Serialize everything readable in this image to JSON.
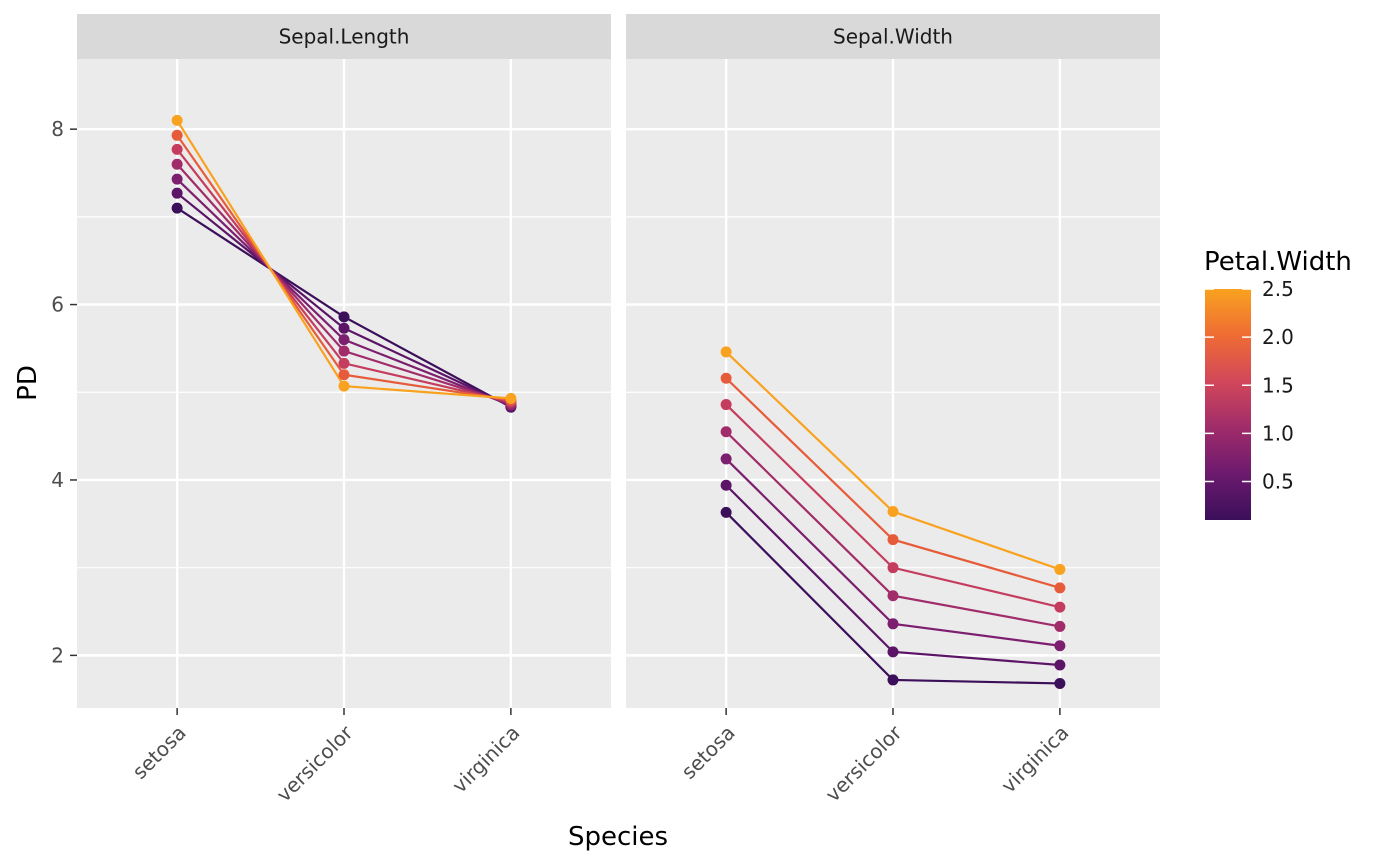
{
  "chart_data": {
    "type": "line",
    "xlabel": "Species",
    "ylabel": "PD",
    "categories": [
      "setosa",
      "versicolor",
      "virginica"
    ],
    "ylim": [
      1.4,
      8.8
    ],
    "yticks": [
      2,
      4,
      6,
      8
    ],
    "grid": true,
    "legend": {
      "title": "Petal.Width",
      "placement": "right",
      "type": "colorbar",
      "range": [
        0.1,
        2.5
      ],
      "ticks": [
        "0.5",
        "1.0",
        "1.5",
        "2.0",
        "2.5"
      ],
      "tick_values": [
        0.5,
        1.0,
        1.5,
        2.0,
        2.5
      ],
      "palette": [
        "#3b0f5a",
        "#6c1a6e",
        "#a02c6a",
        "#d2475a",
        "#ef6c34",
        "#f9a21f"
      ]
    },
    "panels": [
      {
        "title": "Sepal.Length",
        "series": [
          {
            "petal_width": 0.1,
            "color": "#3b0f5a",
            "values": [
              7.1,
              5.86,
              4.83
            ]
          },
          {
            "petal_width": 0.5,
            "color": "#5c1467",
            "values": [
              7.27,
              5.73,
              4.84
            ]
          },
          {
            "petal_width": 0.9,
            "color": "#7d1f6f",
            "values": [
              7.43,
              5.6,
              4.85
            ]
          },
          {
            "petal_width": 1.3,
            "color": "#a02c6a",
            "values": [
              7.6,
              5.47,
              4.87
            ]
          },
          {
            "petal_width": 1.7,
            "color": "#c53d5e",
            "values": [
              7.77,
              5.33,
              4.89
            ]
          },
          {
            "petal_width": 2.1,
            "color": "#e65c3b",
            "values": [
              7.93,
              5.2,
              4.91
            ]
          },
          {
            "petal_width": 2.5,
            "color": "#f9a21f",
            "values": [
              8.1,
              5.07,
              4.93
            ]
          }
        ]
      },
      {
        "title": "Sepal.Width",
        "series": [
          {
            "petal_width": 0.1,
            "color": "#3b0f5a",
            "values": [
              3.63,
              1.72,
              1.68
            ]
          },
          {
            "petal_width": 0.5,
            "color": "#5c1467",
            "values": [
              3.94,
              2.04,
              1.89
            ]
          },
          {
            "petal_width": 0.9,
            "color": "#7d1f6f",
            "values": [
              4.24,
              2.36,
              2.11
            ]
          },
          {
            "petal_width": 1.3,
            "color": "#a02c6a",
            "values": [
              4.55,
              2.68,
              2.33
            ]
          },
          {
            "petal_width": 1.7,
            "color": "#c53d5e",
            "values": [
              4.86,
              3.0,
              2.55
            ]
          },
          {
            "petal_width": 2.1,
            "color": "#e65c3b",
            "values": [
              5.16,
              3.32,
              2.77
            ]
          },
          {
            "petal_width": 2.5,
            "color": "#f9a21f",
            "values": [
              5.46,
              3.64,
              2.98
            ]
          }
        ]
      }
    ]
  }
}
